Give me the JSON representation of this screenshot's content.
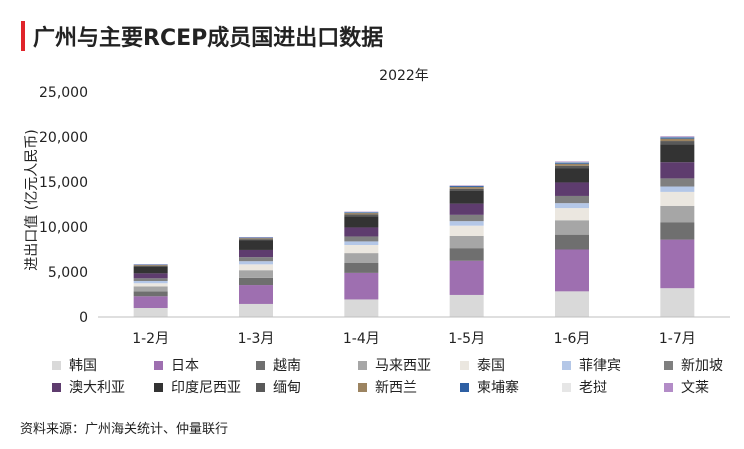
{
  "title": "广州与主要RCEP成员国进出口数据",
  "source": "资料来源：广州海关统计、仲量联行",
  "chart_data": {
    "type": "bar",
    "stacked": true,
    "subtitle": "2022年",
    "ylabel": "进出口值 (亿元人民币)",
    "xlabel": "",
    "ylim": [
      0,
      25000
    ],
    "yticks": [
      0,
      5000,
      10000,
      15000,
      20000,
      25000
    ],
    "ytick_labels": [
      "0",
      "5,000",
      "10,000",
      "15,000",
      "20,000",
      "25,000"
    ],
    "grid": false,
    "legend_position": "bottom",
    "categories": [
      "1-2月",
      "1-3月",
      "1-4月",
      "1-5月",
      "1-6月",
      "1-7月"
    ],
    "series": [
      {
        "name": "韩国",
        "color": "#d9d9d9",
        "values": [
          1000,
          1450,
          1950,
          2450,
          2850,
          3200
        ]
      },
      {
        "name": "日本",
        "color": "#9e6fb0",
        "values": [
          1300,
          2100,
          2950,
          3800,
          4650,
          5400
        ]
      },
      {
        "name": "越南",
        "color": "#6f6f6f",
        "values": [
          550,
          800,
          1100,
          1400,
          1650,
          1900
        ]
      },
      {
        "name": "马来西亚",
        "color": "#a6a6a6",
        "values": [
          550,
          850,
          1100,
          1350,
          1600,
          1850
        ]
      },
      {
        "name": "泰国",
        "color": "#ebe7e0",
        "values": [
          350,
          650,
          900,
          1150,
          1350,
          1550
        ]
      },
      {
        "name": "菲律宾",
        "color": "#b4c7e7",
        "values": [
          250,
          350,
          400,
          500,
          550,
          600
        ]
      },
      {
        "name": "新加坡",
        "color": "#7f7f7f",
        "values": [
          300,
          450,
          550,
          700,
          800,
          900
        ]
      },
      {
        "name": "澳大利亚",
        "color": "#5e3c6e",
        "values": [
          550,
          800,
          1000,
          1250,
          1500,
          1800
        ]
      },
      {
        "name": "印度尼西亚",
        "color": "#333333",
        "values": [
          750,
          1050,
          1250,
          1400,
          1550,
          2000
        ]
      },
      {
        "name": "缅甸",
        "color": "#595959",
        "values": [
          100,
          150,
          200,
          250,
          300,
          350
        ]
      },
      {
        "name": "新西兰",
        "color": "#9c8461",
        "values": [
          80,
          110,
          150,
          190,
          230,
          270
        ]
      },
      {
        "name": "柬埔寨",
        "color": "#2e5fa3",
        "values": [
          50,
          70,
          90,
          110,
          130,
          150
        ]
      },
      {
        "name": "老挝",
        "color": "#e6e6e6",
        "values": [
          20,
          30,
          40,
          50,
          60,
          70
        ]
      },
      {
        "name": "文莱",
        "color": "#b38cc7",
        "values": [
          20,
          30,
          40,
          50,
          60,
          70
        ]
      }
    ]
  }
}
